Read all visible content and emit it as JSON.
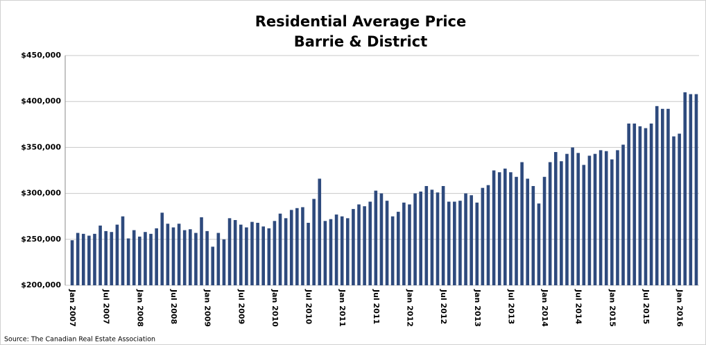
{
  "chart_data": {
    "type": "bar",
    "title": "Residential Average Price",
    "subtitle": "Barrie & District",
    "source": "Source: The Canadian Real Estate Association",
    "color": "#2e4a7d",
    "grid": true,
    "ylim": [
      200000,
      450000
    ],
    "yticks": [
      {
        "value": 200000,
        "label": "$200,000"
      },
      {
        "value": 250000,
        "label": "$250,000"
      },
      {
        "value": 300000,
        "label": "$300,000"
      },
      {
        "value": 350000,
        "label": "$350,000"
      },
      {
        "value": 400000,
        "label": "$400,000"
      },
      {
        "value": 450000,
        "label": "$450,000"
      }
    ],
    "categories": [
      "Jan 2007",
      null,
      null,
      null,
      null,
      null,
      "Jul 2007",
      null,
      null,
      null,
      null,
      null,
      "Jan 2008",
      null,
      null,
      null,
      null,
      null,
      "Jul 2008",
      null,
      null,
      null,
      null,
      null,
      "Jan 2009",
      null,
      null,
      null,
      null,
      null,
      "Jul 2009",
      null,
      null,
      null,
      null,
      null,
      "Jan 2010",
      null,
      null,
      null,
      null,
      null,
      "Jul 2010",
      null,
      null,
      null,
      null,
      null,
      "Jan 2011",
      null,
      null,
      null,
      null,
      null,
      "Jul 2011",
      null,
      null,
      null,
      null,
      null,
      "Jan 2012",
      null,
      null,
      null,
      null,
      null,
      "Jul 2012",
      null,
      null,
      null,
      null,
      null,
      "Jan 2013",
      null,
      null,
      null,
      null,
      null,
      "Jul 2013",
      null,
      null,
      null,
      null,
      null,
      "Jan 2014",
      null,
      null,
      null,
      null,
      null,
      "Jul 2014",
      null,
      null,
      null,
      null,
      null,
      "Jan 2015",
      null,
      null,
      null,
      null,
      null,
      "Jul 2015",
      null,
      null,
      null,
      null,
      null,
      "Jan 2016",
      null,
      null,
      null
    ],
    "values": [
      249000,
      257000,
      256000,
      254000,
      256000,
      265000,
      259000,
      258000,
      266000,
      275000,
      251000,
      260000,
      253000,
      258000,
      256000,
      262000,
      279000,
      267000,
      263000,
      267000,
      260000,
      261000,
      257000,
      274000,
      259000,
      242000,
      257000,
      250000,
      273000,
      271000,
      266000,
      263000,
      269000,
      268000,
      264000,
      262000,
      270000,
      278000,
      273000,
      282000,
      284000,
      285000,
      268000,
      294000,
      316000,
      270000,
      272000,
      277000,
      275000,
      273000,
      283000,
      288000,
      286000,
      291000,
      303000,
      300000,
      292000,
      275000,
      280000,
      290000,
      288000,
      300000,
      302000,
      308000,
      304000,
      301000,
      308000,
      291000,
      291000,
      292000,
      300000,
      298000,
      290000,
      306000,
      309000,
      325000,
      323000,
      327000,
      323000,
      318000,
      334000,
      316000,
      308000,
      289000,
      318000,
      334000,
      345000,
      335000,
      343000,
      350000,
      344000,
      331000,
      341000,
      343000,
      347000,
      346000,
      337000,
      347000,
      353000,
      376000,
      376000,
      373000,
      371000,
      376000,
      395000,
      392000,
      392000,
      362000,
      365000,
      410000,
      408000,
      408000
    ]
  }
}
